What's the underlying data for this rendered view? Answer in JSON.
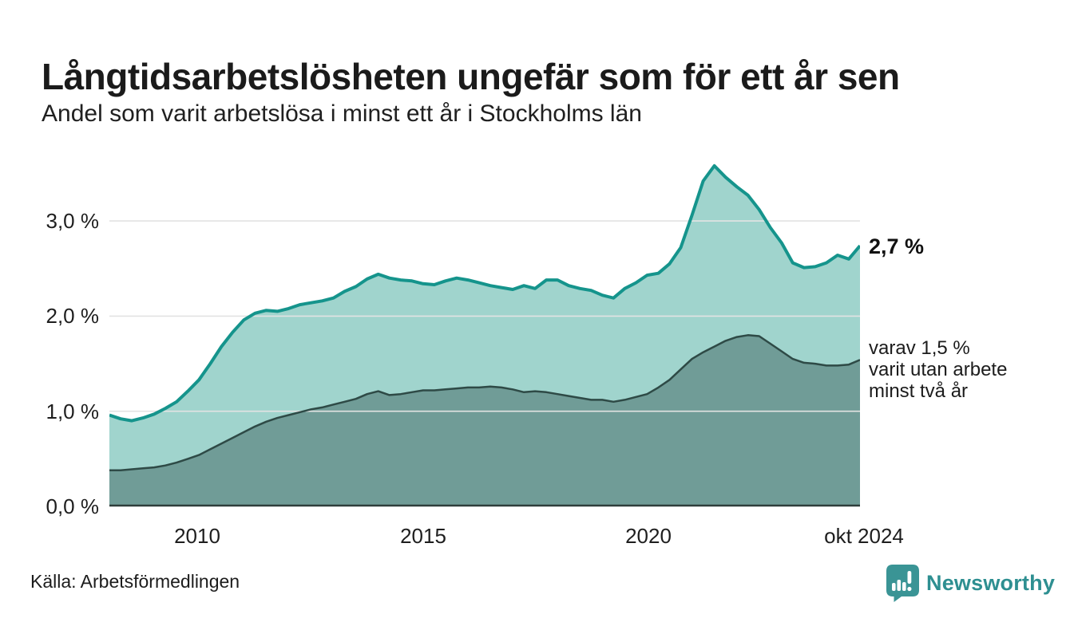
{
  "header": {
    "title": "Långtidsarbetslösheten ungefär som för ett år sen",
    "subtitle": "Andel som varit arbetslösa i minst ett år i Stockholms län"
  },
  "chart_data": {
    "type": "area",
    "title": "Långtidsarbetslösheten ungefär som för ett år sen",
    "subtitle": "Andel som varit arbetslösa i minst ett år i Stockholms län",
    "unit": "%",
    "x_start": 2008.0,
    "x_step": 0.25,
    "x_end": 2024.75,
    "ylim": [
      0,
      3.77
    ],
    "grid": true,
    "y_axis": {
      "ticks": [
        {
          "label": "0,0 %",
          "value": 0.0
        },
        {
          "label": "1,0 %",
          "value": 1.0
        },
        {
          "label": "2,0 %",
          "value": 2.0
        },
        {
          "label": "3,0 %",
          "value": 3.0
        }
      ]
    },
    "x_axis": {
      "ticks": [
        {
          "label": "2010",
          "x": 2010
        },
        {
          "label": "2015",
          "x": 2015
        },
        {
          "label": "2020",
          "x": 2020
        },
        {
          "label": "okt 2024",
          "x": 2024.75
        }
      ]
    },
    "series": [
      {
        "name": "Arbetslösa minst ett år",
        "latest_value": 2.7,
        "values": [
          0.96,
          0.92,
          0.9,
          0.93,
          0.97,
          1.03,
          1.1,
          1.21,
          1.33,
          1.5,
          1.68,
          1.83,
          1.96,
          2.03,
          2.06,
          2.05,
          2.08,
          2.12,
          2.14,
          2.16,
          2.19,
          2.26,
          2.31,
          2.39,
          2.44,
          2.4,
          2.38,
          2.37,
          2.34,
          2.33,
          2.37,
          2.4,
          2.38,
          2.35,
          2.32,
          2.3,
          2.28,
          2.32,
          2.29,
          2.38,
          2.38,
          2.32,
          2.29,
          2.27,
          2.22,
          2.19,
          2.29,
          2.35,
          2.43,
          2.45,
          2.55,
          2.72,
          3.06,
          3.42,
          3.58,
          3.46,
          3.36,
          3.27,
          3.12,
          2.93,
          2.77,
          2.56,
          2.51,
          2.52,
          2.56,
          2.64,
          2.6,
          2.74
        ]
      },
      {
        "name": "varav utan arbete minst två år",
        "latest_value": 1.5,
        "values": [
          0.38,
          0.38,
          0.39,
          0.4,
          0.41,
          0.43,
          0.46,
          0.5,
          0.54,
          0.6,
          0.66,
          0.72,
          0.78,
          0.84,
          0.89,
          0.93,
          0.96,
          0.99,
          1.02,
          1.04,
          1.07,
          1.1,
          1.13,
          1.18,
          1.21,
          1.17,
          1.18,
          1.2,
          1.22,
          1.22,
          1.23,
          1.24,
          1.25,
          1.25,
          1.26,
          1.25,
          1.23,
          1.2,
          1.21,
          1.2,
          1.18,
          1.16,
          1.14,
          1.12,
          1.12,
          1.1,
          1.12,
          1.15,
          1.18,
          1.25,
          1.33,
          1.44,
          1.55,
          1.62,
          1.68,
          1.74,
          1.78,
          1.8,
          1.79,
          1.71,
          1.63,
          1.55,
          1.51,
          1.5,
          1.48,
          1.48,
          1.49,
          1.54
        ]
      }
    ],
    "colors": {
      "line_total": "#15948c",
      "fill_total": "#a0d4cd",
      "line_two_year": "#2e4a46",
      "fill_two_year": "#709c97",
      "grid": "#e3e3e3",
      "axis": "#2f3e3b"
    },
    "annotations": {
      "latest": "2,7 %",
      "note": "varav 1,5 %\nvarit utan arbete\nminst två år"
    },
    "legend_position": "none"
  },
  "footer": {
    "source": "Källa: Arbetsförmedlingen",
    "brand": "Newsworthy",
    "brand_color": "#2e8f91",
    "brand_icon": "newsworthy-speech-bubble-bar-chart-icon"
  }
}
